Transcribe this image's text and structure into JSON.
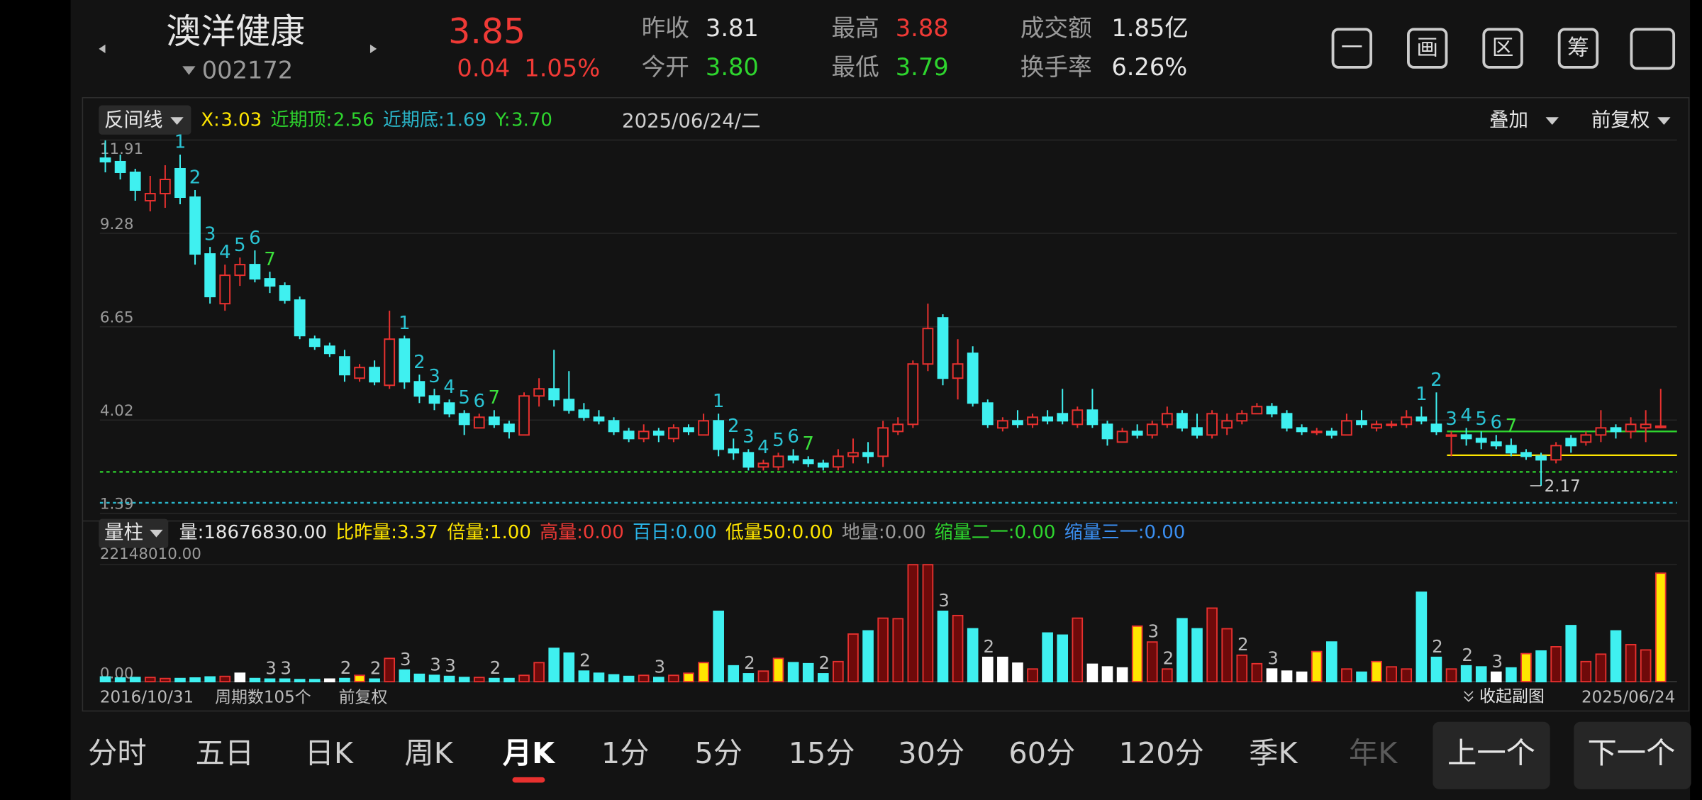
{
  "header": {
    "name": "澳洋健康",
    "code": "002172",
    "price": "3.85",
    "change": "0.04",
    "change_pct": "1.05%",
    "stats": [
      {
        "label": "昨收",
        "value": "3.81",
        "color": "#e6e6e6"
      },
      {
        "label": "今开",
        "value": "3.80",
        "color": "#2ed52e"
      },
      {
        "label": "最高",
        "value": "3.88",
        "color": "#f03a36"
      },
      {
        "label": "最低",
        "value": "3.79",
        "color": "#2ed52e"
      },
      {
        "label": "成交额",
        "value": "1.85亿",
        "color": "#e6e6e6"
      },
      {
        "label": "换手率",
        "value": "6.26%",
        "color": "#e6e6e6"
      }
    ],
    "icons": [
      "一",
      "画",
      "区",
      "筹"
    ]
  },
  "toolbar": {
    "indicator": "反间线",
    "date": "2025/06/24/二",
    "overlay": "叠加",
    "adjust": "前复权"
  },
  "chart_data": [
    {
      "type": "candlestick",
      "ylim": [
        1.39,
        11.91
      ],
      "yticks": [
        1.39,
        4.02,
        6.65,
        9.28,
        11.91
      ],
      "grid": true,
      "up_color": "#e8312f",
      "down_color": "#3ff0f0",
      "ohlc": [
        [
          11.4,
          11.9,
          11.0,
          11.3
        ],
        [
          11.3,
          11.5,
          10.8,
          11.0
        ],
        [
          11.0,
          11.1,
          10.2,
          10.5
        ],
        [
          10.2,
          10.9,
          9.9,
          10.4
        ],
        [
          10.4,
          11.2,
          10.0,
          10.8
        ],
        [
          11.1,
          11.5,
          10.1,
          10.3
        ],
        [
          10.3,
          10.5,
          8.4,
          8.7
        ],
        [
          8.7,
          8.9,
          7.3,
          7.5
        ],
        [
          7.3,
          8.4,
          7.1,
          8.1
        ],
        [
          8.1,
          8.6,
          7.8,
          8.4
        ],
        [
          8.4,
          8.8,
          7.9,
          8.0
        ],
        [
          8.0,
          8.2,
          7.6,
          7.8
        ],
        [
          7.8,
          7.9,
          7.3,
          7.4
        ],
        [
          7.4,
          7.5,
          6.3,
          6.4
        ],
        [
          6.3,
          6.4,
          6.0,
          6.1
        ],
        [
          6.1,
          6.2,
          5.8,
          5.9
        ],
        [
          5.8,
          6.0,
          5.1,
          5.3
        ],
        [
          5.2,
          5.6,
          5.1,
          5.5
        ],
        [
          5.5,
          5.7,
          5.0,
          5.1
        ],
        [
          5.0,
          7.1,
          4.9,
          6.3
        ],
        [
          6.3,
          6.4,
          4.9,
          5.1
        ],
        [
          5.1,
          5.3,
          4.5,
          4.7
        ],
        [
          4.7,
          4.9,
          4.3,
          4.5
        ],
        [
          4.5,
          4.6,
          4.1,
          4.2
        ],
        [
          4.2,
          4.3,
          3.6,
          3.9
        ],
        [
          3.8,
          4.2,
          3.8,
          4.1
        ],
        [
          4.1,
          4.3,
          3.8,
          3.9
        ],
        [
          3.9,
          4.0,
          3.5,
          3.7
        ],
        [
          3.6,
          4.8,
          3.6,
          4.7
        ],
        [
          4.7,
          5.2,
          4.4,
          4.9
        ],
        [
          4.9,
          6.0,
          4.4,
          4.6
        ],
        [
          4.6,
          5.4,
          4.2,
          4.3
        ],
        [
          4.3,
          4.5,
          4.0,
          4.1
        ],
        [
          4.1,
          4.3,
          3.9,
          4.0
        ],
        [
          4.0,
          4.1,
          3.6,
          3.7
        ],
        [
          3.7,
          3.8,
          3.4,
          3.5
        ],
        [
          3.5,
          3.9,
          3.4,
          3.7
        ],
        [
          3.7,
          3.8,
          3.4,
          3.6
        ],
        [
          3.5,
          3.9,
          3.4,
          3.8
        ],
        [
          3.8,
          3.9,
          3.6,
          3.7
        ],
        [
          3.6,
          4.2,
          3.6,
          4.0
        ],
        [
          4.0,
          4.2,
          3.0,
          3.2
        ],
        [
          3.2,
          3.5,
          2.9,
          3.1
        ],
        [
          3.1,
          3.2,
          2.6,
          2.7
        ],
        [
          2.7,
          2.9,
          2.6,
          2.8
        ],
        [
          2.7,
          3.1,
          2.6,
          3.0
        ],
        [
          3.0,
          3.2,
          2.8,
          2.9
        ],
        [
          2.9,
          3.0,
          2.7,
          2.8
        ],
        [
          2.8,
          2.9,
          2.6,
          2.7
        ],
        [
          2.7,
          3.2,
          2.6,
          3.0
        ],
        [
          3.0,
          3.5,
          2.8,
          3.1
        ],
        [
          3.1,
          3.4,
          2.8,
          3.0
        ],
        [
          3.0,
          4.0,
          2.7,
          3.8
        ],
        [
          3.7,
          4.1,
          3.6,
          3.9
        ],
        [
          3.9,
          5.7,
          3.8,
          5.6
        ],
        [
          5.6,
          7.3,
          5.4,
          6.6
        ],
        [
          6.9,
          7.0,
          5.0,
          5.2
        ],
        [
          5.2,
          6.3,
          4.6,
          5.6
        ],
        [
          5.9,
          6.1,
          4.4,
          4.5
        ],
        [
          4.5,
          4.6,
          3.8,
          3.9
        ],
        [
          3.8,
          4.1,
          3.7,
          4.0
        ],
        [
          4.0,
          4.3,
          3.8,
          3.9
        ],
        [
          3.9,
          4.2,
          3.8,
          4.1
        ],
        [
          4.1,
          4.3,
          3.9,
          4.0
        ],
        [
          4.2,
          4.9,
          3.9,
          4.0
        ],
        [
          3.9,
          4.4,
          3.8,
          4.3
        ],
        [
          4.3,
          4.9,
          3.8,
          3.9
        ],
        [
          3.9,
          4.0,
          3.3,
          3.5
        ],
        [
          3.4,
          3.8,
          3.4,
          3.7
        ],
        [
          3.7,
          3.9,
          3.5,
          3.6
        ],
        [
          3.6,
          4.0,
          3.5,
          3.9
        ],
        [
          3.9,
          4.4,
          3.8,
          4.2
        ],
        [
          4.2,
          4.3,
          3.7,
          3.8
        ],
        [
          3.8,
          4.2,
          3.5,
          3.6
        ],
        [
          3.6,
          4.3,
          3.5,
          4.2
        ],
        [
          3.8,
          4.2,
          3.6,
          4.0
        ],
        [
          4.0,
          4.3,
          3.9,
          4.2
        ],
        [
          4.2,
          4.5,
          4.2,
          4.4
        ],
        [
          4.4,
          4.5,
          4.1,
          4.2
        ],
        [
          4.2,
          4.3,
          3.7,
          3.8
        ],
        [
          3.8,
          3.9,
          3.6,
          3.7
        ],
        [
          3.7,
          3.8,
          3.6,
          3.7
        ],
        [
          3.7,
          3.8,
          3.5,
          3.6
        ],
        [
          3.6,
          4.2,
          3.6,
          4.0
        ],
        [
          4.0,
          4.3,
          3.8,
          3.9
        ],
        [
          3.8,
          4.0,
          3.7,
          3.9
        ],
        [
          3.9,
          4.0,
          3.8,
          3.9
        ],
        [
          3.9,
          4.3,
          3.8,
          4.1
        ],
        [
          4.1,
          4.4,
          3.9,
          4.0
        ],
        [
          3.9,
          4.8,
          3.6,
          3.7
        ],
        [
          3.6,
          3.7,
          3.0,
          3.6
        ],
        [
          3.6,
          3.8,
          3.3,
          3.5
        ],
        [
          3.5,
          3.7,
          3.2,
          3.4
        ],
        [
          3.4,
          3.6,
          3.2,
          3.3
        ],
        [
          3.3,
          3.5,
          3.0,
          3.1
        ],
        [
          3.1,
          3.2,
          2.9,
          3.0
        ],
        [
          3.0,
          3.1,
          2.17,
          2.9
        ],
        [
          2.9,
          3.4,
          2.8,
          3.3
        ],
        [
          3.5,
          3.6,
          3.1,
          3.3
        ],
        [
          3.4,
          3.7,
          3.3,
          3.6
        ],
        [
          3.6,
          4.3,
          3.4,
          3.8
        ],
        [
          3.8,
          3.9,
          3.5,
          3.7
        ],
        [
          3.7,
          4.1,
          3.5,
          3.9
        ],
        [
          3.8,
          4.3,
          3.4,
          3.9
        ],
        [
          3.81,
          4.9,
          3.79,
          3.85
        ]
      ],
      "low_label_at": 96,
      "annotations": [
        {
          "at": 5,
          "text": "1",
          "color": "#2bc4d4"
        },
        {
          "at": 6,
          "text": "2",
          "color": "#2bc4d4"
        },
        {
          "at": 7,
          "text": "3",
          "color": "#2bc4d4"
        },
        {
          "at": 8,
          "text": "4",
          "color": "#2bc4d4"
        },
        {
          "at": 9,
          "text": "5",
          "color": "#2bc4d4"
        },
        {
          "at": 10,
          "text": "6",
          "color": "#2bc4d4"
        },
        {
          "at": 11,
          "text": "7",
          "color": "#3be03b"
        },
        {
          "at": 20,
          "text": "1",
          "color": "#2bc4d4"
        },
        {
          "at": 21,
          "text": "2",
          "color": "#2bc4d4"
        },
        {
          "at": 22,
          "text": "3",
          "color": "#2bc4d4"
        },
        {
          "at": 23,
          "text": "4",
          "color": "#2bc4d4"
        },
        {
          "at": 24,
          "text": "5",
          "color": "#2bc4d4"
        },
        {
          "at": 25,
          "text": "6",
          "color": "#2bc4d4"
        },
        {
          "at": 26,
          "text": "7",
          "color": "#3be03b"
        },
        {
          "at": 41,
          "text": "1",
          "color": "#2bc4d4"
        },
        {
          "at": 42,
          "text": "2",
          "color": "#2bc4d4"
        },
        {
          "at": 43,
          "text": "3",
          "color": "#2bc4d4"
        },
        {
          "at": 44,
          "text": "4",
          "color": "#2bc4d4"
        },
        {
          "at": 45,
          "text": "5",
          "color": "#2bc4d4"
        },
        {
          "at": 46,
          "text": "6",
          "color": "#2bc4d4"
        },
        {
          "at": 47,
          "text": "7",
          "color": "#3be03b"
        },
        {
          "at": 88,
          "text": "1",
          "color": "#2bc4d4"
        },
        {
          "at": 89,
          "text": "2",
          "color": "#2bc4d4"
        },
        {
          "at": 90,
          "text": "3",
          "color": "#2bc4d4"
        },
        {
          "at": 91,
          "text": "4",
          "color": "#2bc4d4"
        },
        {
          "at": 92,
          "text": "5",
          "color": "#2bc4d4"
        },
        {
          "at": 93,
          "text": "6",
          "color": "#2bc4d4"
        },
        {
          "at": 94,
          "text": "7",
          "color": "#3be03b"
        }
      ],
      "lines": [
        {
          "label": "X:",
          "value": 3.03,
          "color": "#ffe600",
          "start": 90
        },
        {
          "label": "近期顶:",
          "value": 2.56,
          "color": "#2ed52e",
          "dashed": true
        },
        {
          "label": "近期底:",
          "value": 1.69,
          "color": "#2ab5c9",
          "dashed": true
        },
        {
          "label": "Y:",
          "value": 3.7,
          "value_label": "3.70",
          "color": "#2ed52e",
          "start": 90
        }
      ]
    },
    {
      "type": "bar",
      "indicator": "量柱",
      "readouts": [
        {
          "text": "量:18676830.00",
          "color": "#e6e6e6"
        },
        {
          "text": "比昨量:3.37",
          "color": "#ffe600"
        },
        {
          "text": "倍量:1.00",
          "color": "#ffe600"
        },
        {
          "text": "高量:0.00",
          "color": "#f03a36"
        },
        {
          "text": "百日:0.00",
          "color": "#2ab5e9"
        },
        {
          "text": "低量50:0.00",
          "color": "#ffe600"
        },
        {
          "text": "地量:0.00",
          "color": "#9a9a9a"
        },
        {
          "text": "缩量二一:0.00",
          "color": "#2ed52e"
        },
        {
          "text": "缩量三一:0.00",
          "color": "#3a8ef0"
        }
      ],
      "ylim": [
        0,
        22148010
      ],
      "yticks": [
        {
          "value": 0,
          "label": "0.00"
        },
        {
          "value": 22148010,
          "label": "22148010.00"
        }
      ],
      "values": [
        900000,
        700000,
        800000,
        800000,
        600000,
        600000,
        700000,
        900000,
        1000000,
        1600000,
        600000,
        500000,
        500000,
        400000,
        400000,
        500000,
        600000,
        1200000,
        500000,
        4400000,
        2200000,
        1400000,
        1200000,
        1000000,
        800000,
        800000,
        600000,
        600000,
        1200000,
        3600000,
        6300000,
        5400000,
        2000000,
        1600000,
        1300000,
        1000000,
        1200000,
        800000,
        1200000,
        1600000,
        3600000,
        13300000,
        3000000,
        1500000,
        2000000,
        4400000,
        3600000,
        3400000,
        1500000,
        3800000,
        9000000,
        9600000,
        12000000,
        11900000,
        22100000,
        22100000,
        13300000,
        12500000,
        10000000,
        4600000,
        4600000,
        3500000,
        2400000,
        9200000,
        8800000,
        12000000,
        3300000,
        2800000,
        2600000,
        10500000,
        7500000,
        2400000,
        11900000,
        10000000,
        13900000,
        10000000,
        5000000,
        3400000,
        2400000,
        2000000,
        1800000,
        5700000,
        7500000,
        2400000,
        1800000,
        3800000,
        2800000,
        2400000,
        16900000,
        4600000,
        2400000,
        3000000,
        2800000,
        1800000,
        2600000,
        5300000,
        5800000,
        6600000,
        10600000,
        3800000,
        5200000,
        9600000,
        7000000,
        6000000,
        20500000
      ],
      "up_color": "#e8312f",
      "down_color": "#3ff0f0",
      "color_overrides": {
        "9": "#ffffff",
        "15": "#ffffff",
        "59": "#ffffff",
        "60": "#ffffff",
        "61": "#ffffff",
        "66": "#ffffff",
        "67": "#ffffff",
        "68": "#ffffff",
        "78": "#ffffff",
        "79": "#ffffff",
        "80": "#ffffff",
        "93": "#ffffff",
        "17": "#ffe600",
        "39": "#ffe600",
        "40": "#ffe600",
        "45": "#ffe600",
        "69": "#ffe600",
        "81": "#ffe600",
        "85": "#ffe600",
        "95": "#ffe600",
        "104": "#ffe600"
      },
      "annotations": [
        {
          "at": 11,
          "text": "3"
        },
        {
          "at": 12,
          "text": "3"
        },
        {
          "at": 16,
          "text": "2"
        },
        {
          "at": 18,
          "text": "2"
        },
        {
          "at": 20,
          "text": "3"
        },
        {
          "at": 22,
          "text": "3"
        },
        {
          "at": 23,
          "text": "3"
        },
        {
          "at": 26,
          "text": "2"
        },
        {
          "at": 32,
          "text": "2"
        },
        {
          "at": 37,
          "text": "3"
        },
        {
          "at": 43,
          "text": "2"
        },
        {
          "at": 48,
          "text": "2"
        },
        {
          "at": 56,
          "text": "3"
        },
        {
          "at": 59,
          "text": "2"
        },
        {
          "at": 70,
          "text": "3"
        },
        {
          "at": 71,
          "text": "2"
        },
        {
          "at": 76,
          "text": "2"
        },
        {
          "at": 78,
          "text": "3"
        },
        {
          "at": 89,
          "text": "2"
        },
        {
          "at": 91,
          "text": "2"
        },
        {
          "at": 93,
          "text": "3"
        }
      ]
    }
  ],
  "footer": {
    "start_date": "2016/10/31",
    "count": "周期数105个",
    "adjust": "前复权",
    "collapse": "收起副图",
    "end_date": "2025/06/24"
  },
  "tabs": {
    "items": [
      "分时",
      "五日",
      "日K",
      "周K",
      "月K",
      "1分",
      "5分",
      "15分",
      "30分",
      "60分",
      "120分",
      "季K",
      "年K"
    ],
    "active": 4,
    "prev": "上一个",
    "next": "下一个"
  }
}
